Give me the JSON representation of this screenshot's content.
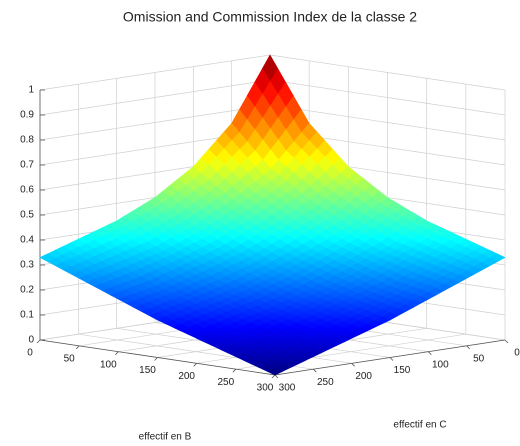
{
  "chart_data": {
    "type": "surface",
    "title": "Omission and Commission Index de la classe 2",
    "xlabel": "effectif en B",
    "ylabel": "effectif en C",
    "x": [
      0,
      50,
      100,
      150,
      200,
      250,
      300
    ],
    "y": [
      0,
      50,
      100,
      150,
      200,
      250,
      300
    ],
    "z": [
      [
        1,
        0.75,
        0.6,
        0.5,
        0.43,
        0.38,
        0.33
      ],
      [
        0.75,
        0.59,
        0.49,
        0.41,
        0.35,
        0.31,
        0.27
      ],
      [
        0.6,
        0.49,
        0.41,
        0.34,
        0.29,
        0.24,
        0.21
      ],
      [
        0.5,
        0.41,
        0.34,
        0.28,
        0.23,
        0.19,
        0.15
      ],
      [
        0.43,
        0.35,
        0.29,
        0.23,
        0.18,
        0.14,
        0.1
      ],
      [
        0.38,
        0.31,
        0.24,
        0.19,
        0.14,
        0.09,
        0.05
      ],
      [
        0.33,
        0.27,
        0.21,
        0.15,
        0.1,
        0.05,
        0
      ]
    ],
    "xlim": [
      0,
      300
    ],
    "ylim": [
      0,
      300
    ],
    "zlim": [
      0,
      1
    ],
    "xticks": [
      0,
      50,
      100,
      150,
      200,
      250,
      300
    ],
    "yticks": [
      0,
      50,
      100,
      150,
      200,
      250,
      300
    ],
    "zticks": [
      0,
      0.1,
      0.2,
      0.3,
      0.4,
      0.5,
      0.6,
      0.7,
      0.8,
      0.9,
      1
    ],
    "colormap": "jet",
    "grid": true
  }
}
